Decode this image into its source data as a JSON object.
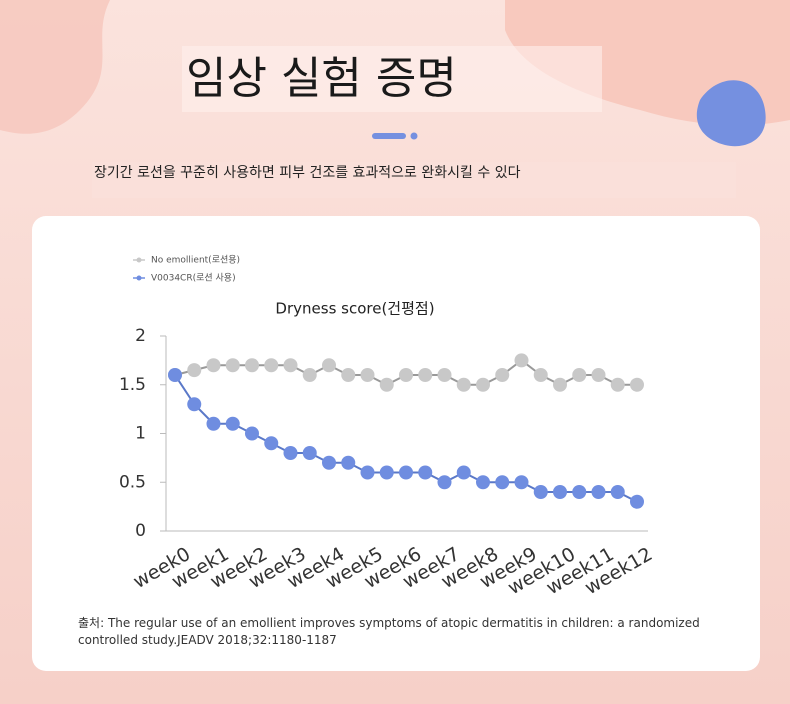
{
  "header": {
    "title": "임상 실험 증명",
    "subtitle": "장기간 로션을 꾸준히 사용하면 피부 건조를 효과적으로 완화시킬 수 있다"
  },
  "chart_data": {
    "type": "line",
    "title": "Dryness score(건평점)",
    "categories": [
      "week0",
      null,
      "week1",
      null,
      "week2",
      null,
      "week3",
      null,
      "week4",
      null,
      "week5",
      null,
      "week6",
      null,
      "week7",
      null,
      "week8",
      null,
      "week9",
      null,
      "week10",
      null,
      "week11",
      null,
      "week12"
    ],
    "series": [
      {
        "name": "No emollient(로션용)",
        "color": "#c8c8c8",
        "values": [
          1.6,
          1.65,
          1.7,
          1.7,
          1.7,
          1.7,
          1.7,
          1.6,
          1.7,
          1.6,
          1.6,
          1.5,
          1.6,
          1.6,
          1.6,
          1.5,
          1.5,
          1.6,
          1.75,
          1.6,
          1.5,
          1.6,
          1.6,
          1.5,
          1.5
        ]
      },
      {
        "name": "V0034CR(로션 사용)",
        "color": "#6f8de0",
        "values": [
          1.6,
          1.3,
          1.1,
          1.1,
          1.0,
          0.9,
          0.8,
          0.8,
          0.7,
          0.7,
          0.6,
          0.6,
          0.6,
          0.6,
          0.5,
          0.6,
          0.5,
          0.5,
          0.5,
          0.4,
          0.4,
          0.4,
          0.4,
          0.4,
          0.3
        ]
      }
    ],
    "ylim": [
      0,
      2
    ],
    "yticks": [
      0,
      0.5,
      1,
      1.5,
      2
    ],
    "grid": false,
    "legend": "top-left"
  },
  "source": "출처: The regular use of an emollient improves symptoms of atopic dermatitis in children: a randomized controlled study.JEADV 2018;32:1180-1187"
}
